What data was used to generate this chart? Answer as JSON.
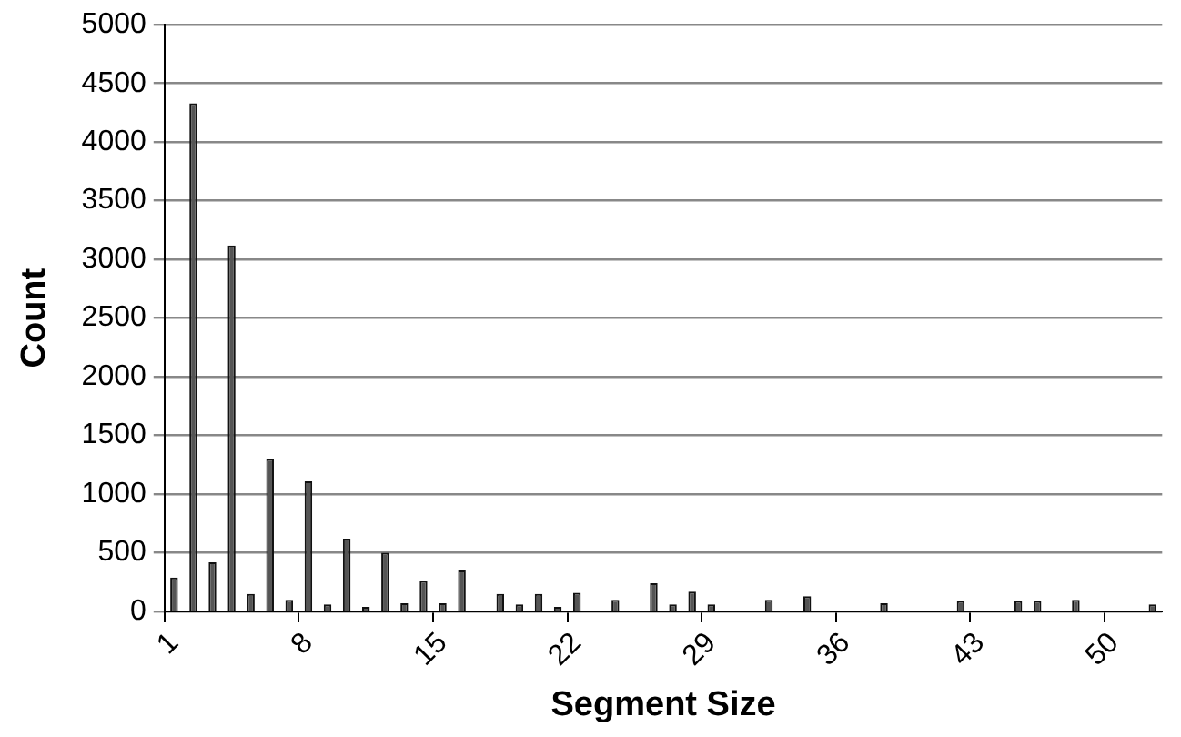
{
  "chart_data": {
    "type": "bar",
    "xlabel": "Segment Size",
    "ylabel": "Count",
    "categories": [
      "1",
      null,
      null,
      null,
      null,
      null,
      null,
      "8",
      null,
      null,
      null,
      null,
      null,
      null,
      "15",
      null,
      null,
      null,
      null,
      null,
      null,
      "22",
      null,
      null,
      null,
      null,
      null,
      null,
      "29",
      null,
      null,
      null,
      null,
      null,
      null,
      "36",
      null,
      null,
      null,
      null,
      null,
      null,
      "43",
      null,
      null,
      null,
      null,
      null,
      null,
      "50",
      null,
      null
    ],
    "values": [
      290,
      4330,
      420,
      3120,
      150,
      1300,
      100,
      1110,
      60,
      620,
      40,
      500,
      70,
      260,
      70,
      350,
      null,
      150,
      60,
      150,
      40,
      160,
      null,
      100,
      null,
      240,
      60,
      170,
      60,
      null,
      null,
      100,
      null,
      130,
      null,
      null,
      null,
      70,
      null,
      null,
      null,
      90,
      null,
      null,
      90,
      90,
      null,
      100,
      null,
      null,
      null,
      60
    ],
    "color": "#555555",
    "ylim": [
      0,
      5000
    ],
    "yticks": [
      0,
      500,
      1000,
      1500,
      2000,
      2500,
      3000,
      3500,
      4000,
      4500,
      5000
    ],
    "grid": "y",
    "legend": false
  }
}
